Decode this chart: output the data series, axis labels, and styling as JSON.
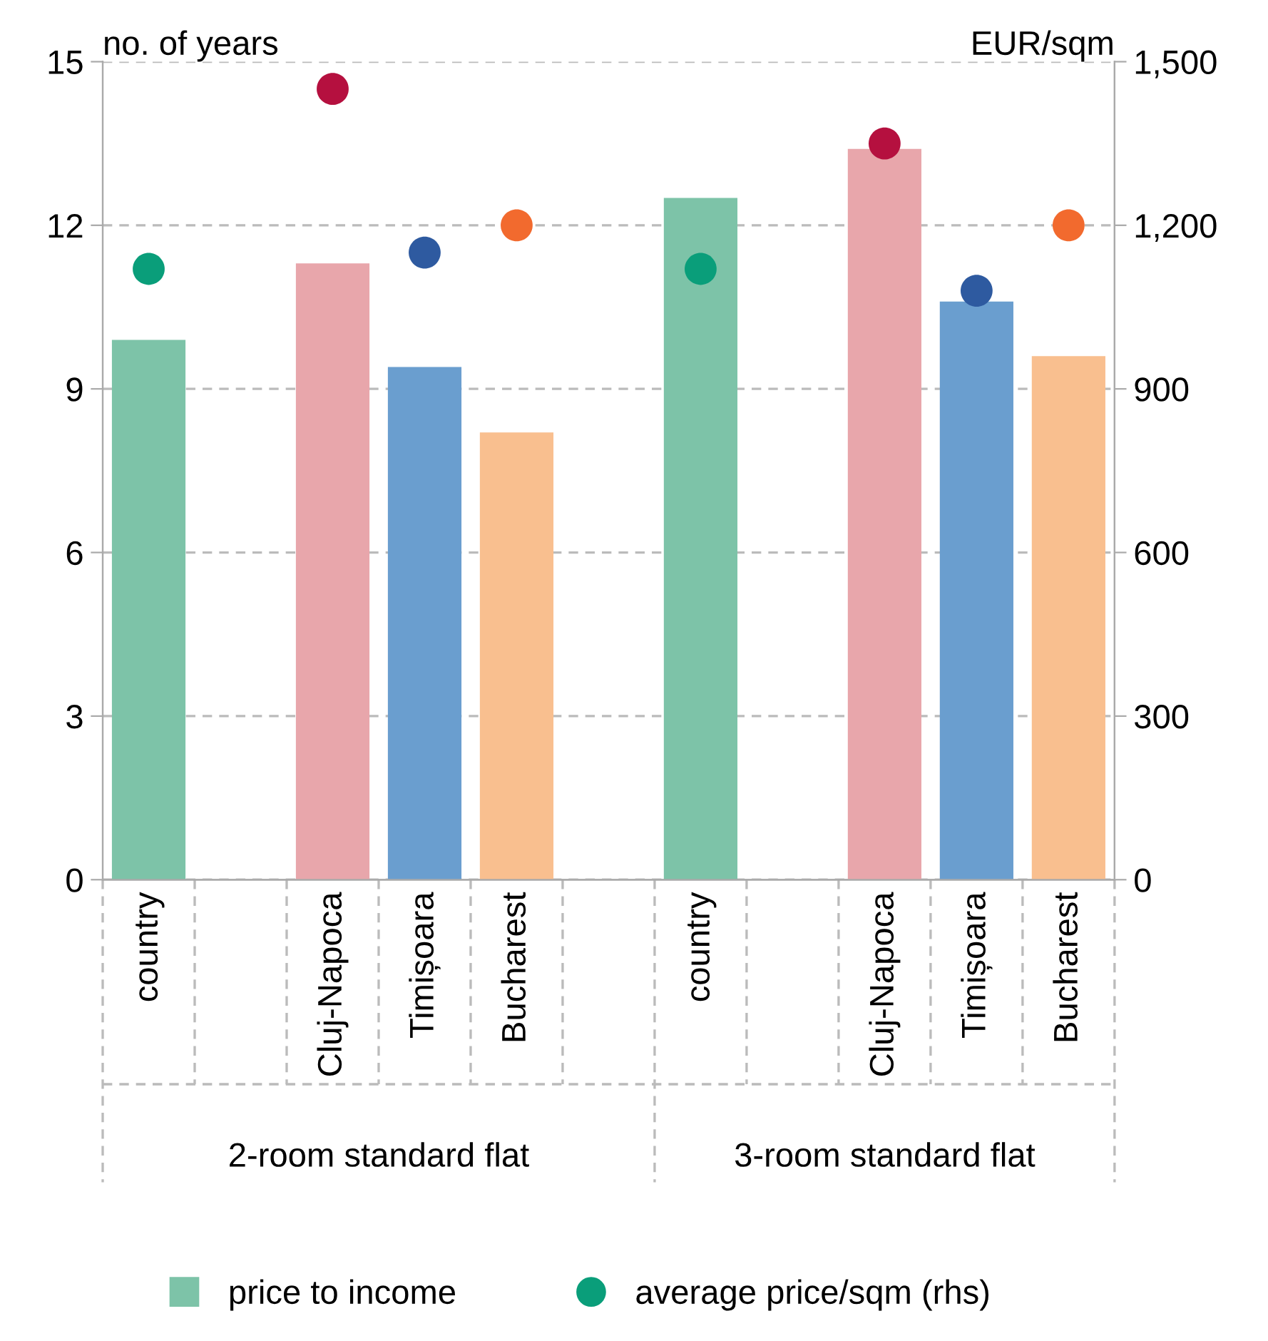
{
  "chart_data": {
    "type": "bar",
    "ylabel": "no. of years",
    "y2label": "EUR/sqm",
    "categories": [
      "country",
      null,
      "Cluj-Napoca",
      "Timișoara",
      "Bucharest",
      null,
      "country",
      null,
      "Cluj-Napoca",
      "Timișoara",
      "Bucharest"
    ],
    "series": [
      {
        "name": "price to income",
        "color": "#7dc3a8",
        "colors": [
          "#7dc3a8",
          "#7dc3a8",
          "#e8a6ab",
          "#6a9ecf",
          "#f9bf8f",
          "#7dc3a8",
          "#7dc3a8",
          "#7dc3a8",
          "#e8a6ab",
          "#6a9ecf",
          "#f9bf8f"
        ],
        "values": [
          9.9,
          null,
          11.3,
          9.4,
          8.2,
          null,
          12.5,
          null,
          13.4,
          10.6,
          9.6
        ]
      },
      {
        "name": "average price/sqm (rhs)",
        "type": "scatter",
        "axis": "y2",
        "marker": "circle",
        "color": "#0a9e7a",
        "colors": [
          "#0a9e7a",
          "#0a9e7a",
          "#b5103f",
          "#2e5aa0",
          "#f26a2e",
          "#0a9e7a",
          "#0a9e7a",
          "#0a9e7a",
          "#b5103f",
          "#2e5aa0",
          "#f26a2e"
        ],
        "values": [
          1120,
          null,
          1450,
          1150,
          1200,
          null,
          1120,
          null,
          1350,
          1080,
          1200
        ]
      }
    ],
    "ylim": [
      0,
      15
    ],
    "yticks": [
      0,
      3,
      6,
      9,
      12,
      15
    ],
    "y2lim": [
      0,
      1500
    ],
    "y2ticks": [
      0,
      300,
      600,
      900,
      {
        "value": 1200,
        "label": "1,200"
      },
      {
        "value": 1500,
        "label": "1,500"
      }
    ],
    "grid": "y",
    "legend": "bottom",
    "annotations": [
      "2-room standard flat",
      "3-room standard flat"
    ]
  }
}
